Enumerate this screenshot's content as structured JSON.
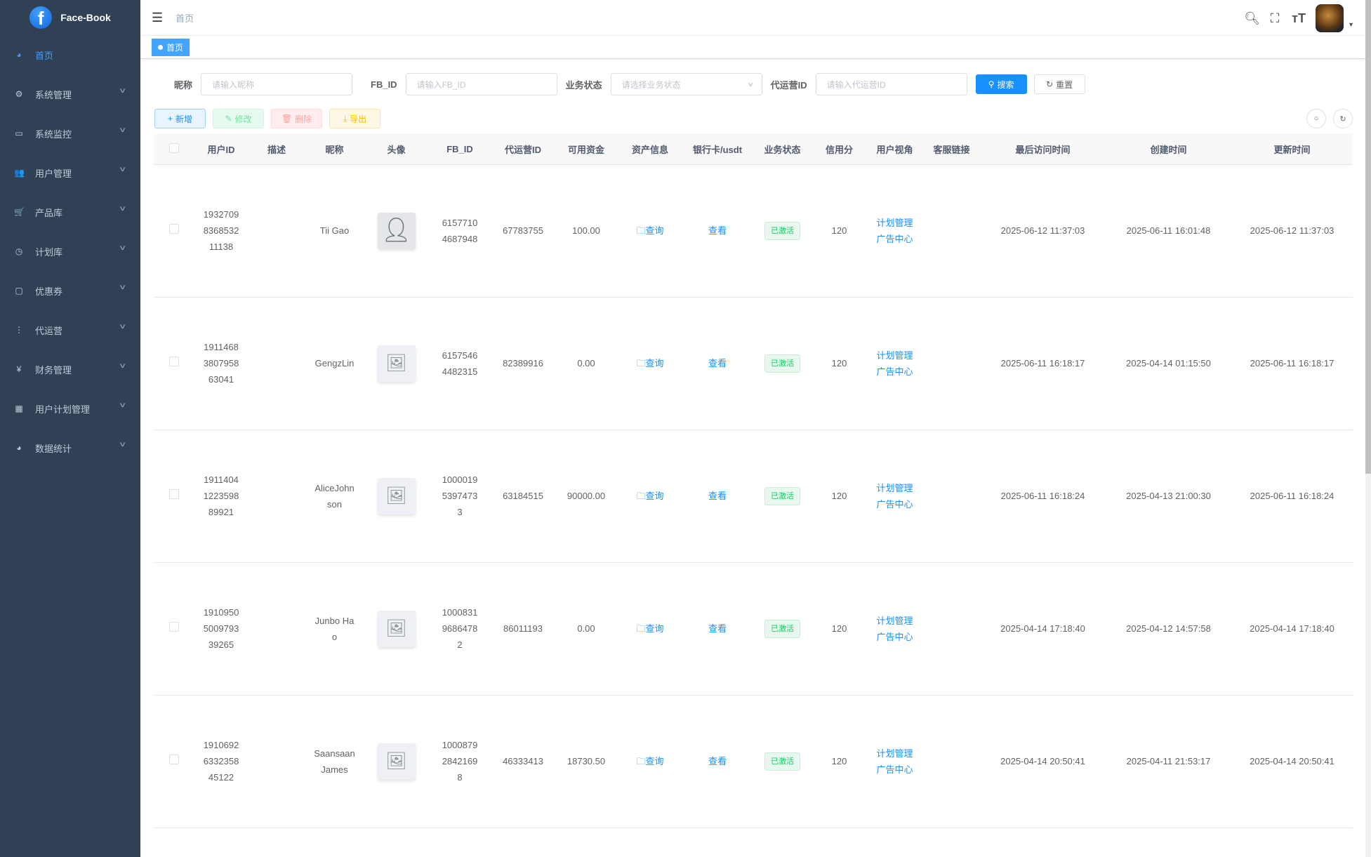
{
  "app": {
    "title": "Face-Book",
    "logo_letter": "f"
  },
  "sidebar": {
    "items": [
      {
        "label": "首页",
        "icon": "dashboard-icon",
        "glyph": "◕",
        "active": true
      },
      {
        "label": "系统管理",
        "icon": "gear-icon",
        "glyph": "⚙"
      },
      {
        "label": "系统监控",
        "icon": "monitor-icon",
        "glyph": "▭"
      },
      {
        "label": "用户管理",
        "icon": "user-icon",
        "glyph": "👥"
      },
      {
        "label": "产品库",
        "icon": "cart-icon",
        "glyph": "🛒"
      },
      {
        "label": "计划库",
        "icon": "clock-icon",
        "glyph": "◷"
      },
      {
        "label": "优惠券",
        "icon": "coupon-icon",
        "glyph": "▢"
      },
      {
        "label": "代运营",
        "icon": "tree-icon",
        "glyph": "⋮"
      },
      {
        "label": "财务管理",
        "icon": "yen-icon",
        "glyph": "¥"
      },
      {
        "label": "用户计划管理",
        "icon": "table-icon",
        "glyph": "▦"
      },
      {
        "label": "数据统计",
        "icon": "dashboard-icon",
        "glyph": "◕"
      }
    ]
  },
  "header": {
    "breadcrumb": "首页"
  },
  "tags": [
    {
      "label": "首页",
      "active": true
    }
  ],
  "filters": {
    "nickname": {
      "label": "昵称",
      "placeholder": "请输入昵称"
    },
    "fb_id": {
      "label": "FB_ID",
      "placeholder": "请输入FB_ID"
    },
    "status": {
      "label": "业务状态",
      "placeholder": "请选择业务状态"
    },
    "operator_id": {
      "label": "代运营ID",
      "placeholder": "请输入代运营ID"
    },
    "search_label": "搜索",
    "reset_label": "重置"
  },
  "toolbar": {
    "add": "新增",
    "edit": "修改",
    "delete": "删除",
    "export": "导出"
  },
  "table": {
    "columns": [
      "",
      "用户ID",
      "描述",
      "昵称",
      "头像",
      "FB_ID",
      "代运营ID",
      "可用资金",
      "资产信息",
      "银行卡/usdt",
      "业务状态",
      "信用分",
      "用户视角",
      "客服链接",
      "最后访问时间",
      "创建时间",
      "更新时间"
    ],
    "asset_link": "查询",
    "bank_link": "查看",
    "view_links": [
      "计划管理",
      "广告中心"
    ],
    "rows": [
      {
        "user_id": "1932709836853211138",
        "desc": "",
        "nickname": "Tii Gao",
        "avatar": "default-user",
        "fb_id": "61577104687948",
        "operator_id": "67783755",
        "funds": "100.00",
        "status": "已激活",
        "credit": "120",
        "last_visit": "2025-06-12 11:37:03",
        "created": "2025-06-11 16:01:48",
        "updated": "2025-06-12 11:37:03"
      },
      {
        "user_id": "191146838079586304 1",
        "desc": "",
        "nickname": "GengzLin",
        "avatar": "image-placeholder",
        "fb_id": "61575464482315",
        "operator_id": "82389916",
        "funds": "0.00",
        "status": "已激活",
        "credit": "120",
        "last_visit": "2025-06-11 16:18:17",
        "created": "2025-04-14 01:15:50",
        "updated": "2025-06-11 16:18:17"
      },
      {
        "user_id": "1911404122359889921",
        "desc": "",
        "nickname": "AliceJohnson",
        "avatar": "image-placeholder",
        "fb_id": "100001953974733",
        "operator_id": "63184515",
        "funds": "90000.00",
        "status": "已激活",
        "credit": "120",
        "last_visit": "2025-06-11 16:18:24",
        "created": "2025-04-13 21:00:30",
        "updated": "2025-06-11 16:18:24"
      },
      {
        "user_id": "1910950500979339265",
        "desc": "",
        "nickname": "Junbo Hao",
        "avatar": "image-placeholder",
        "fb_id": "100083196864782",
        "operator_id": "86011193",
        "funds": "0.00",
        "status": "已激活",
        "credit": "120",
        "last_visit": "2025-04-14 17:18:40",
        "created": "2025-04-12 14:57:58",
        "updated": "2025-04-14 17:18:40"
      },
      {
        "user_id": "1910692633235845122",
        "desc": "",
        "nickname": "Saansaan James",
        "avatar": "image-placeholder",
        "fb_id": "100087928421698",
        "operator_id": "46333413",
        "funds": "18730.50",
        "status": "已激活",
        "credit": "120",
        "last_visit": "2025-04-14 20:50:41",
        "created": "2025-04-11 21:53:17",
        "updated": "2025-04-14 20:50:41"
      }
    ]
  },
  "colors": {
    "sidebar": "#304156",
    "primary": "#1890ff",
    "success": "#13ce66"
  }
}
